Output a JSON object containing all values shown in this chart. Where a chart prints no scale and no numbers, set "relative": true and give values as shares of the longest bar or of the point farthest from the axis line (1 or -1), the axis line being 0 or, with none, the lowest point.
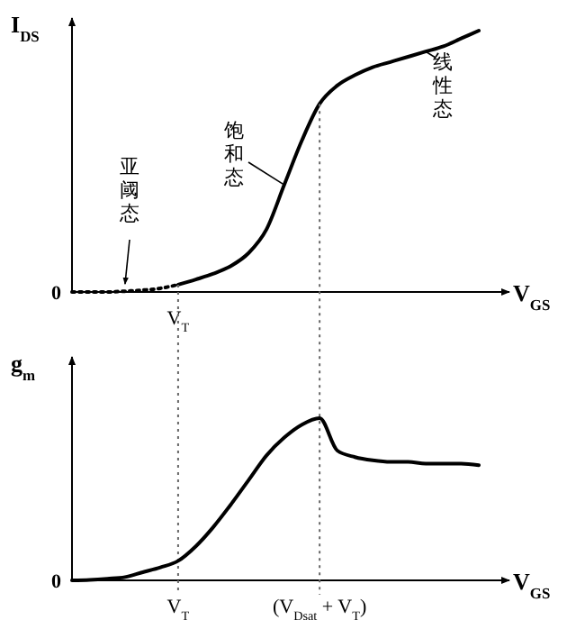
{
  "chart_data": [
    {
      "type": "line",
      "relative": true,
      "ylabel": "I$_{DS}$",
      "xlabel": "V$_{GS}$",
      "categories": [
        null,
        null,
        null,
        null,
        null,
        null,
        null,
        null,
        null,
        null,
        null,
        null,
        null,
        null,
        null,
        null,
        null,
        null,
        null,
        null,
        null,
        null,
        null,
        null
      ],
      "series": [
        {
          "color": "#000000",
          "line_style": "dotted",
          "values": [
            0,
            0,
            0,
            0.003,
            0.007,
            0.014,
            0.028,
            null,
            null,
            null,
            null,
            null,
            null,
            null,
            null,
            null,
            null,
            null,
            null,
            null,
            null,
            null,
            null,
            null
          ]
        },
        {
          "color": "#000000",
          "line_style": "solid",
          "values": [
            null,
            null,
            null,
            null,
            null,
            null,
            0.028,
            0.048,
            0.07,
            0.1,
            0.15,
            0.24,
            0.41,
            0.58,
            0.72,
            0.79,
            0.83,
            0.86,
            0.88,
            0.9,
            0.92,
            0.94,
            0.97,
            1
          ]
        }
      ],
      "annotations": [
        "0",
        "亚阈态",
        "饱和态",
        "线性态",
        "V$_{T}$"
      ]
    },
    {
      "type": "line",
      "relative": true,
      "ylabel": "g$_{m}$",
      "xlabel": "V$_{GS}$",
      "categories": [
        null,
        null,
        null,
        null,
        null,
        null,
        "V$_{T}$",
        null,
        null,
        null,
        null,
        null,
        null,
        null,
        "(V$_{Dsat}$ + V$_{T}$)",
        null,
        null,
        null,
        null,
        null,
        null,
        null,
        null,
        null
      ],
      "series": [
        {
          "color": "#000000",
          "line_style": "solid",
          "values": [
            0,
            0.003,
            0.01,
            0.02,
            0.05,
            0.08,
            0.12,
            0.21,
            0.33,
            0.47,
            0.62,
            0.77,
            0.88,
            0.96,
            1,
            0.8,
            0.76,
            0.74,
            0.73,
            0.73,
            0.72,
            0.72,
            0.72,
            0.71
          ]
        }
      ],
      "ref_lines": [
        {
          "axis": "x",
          "value": "V$_{T}$",
          "line_style": "dotted"
        },
        {
          "axis": "x",
          "value": "(V$_{Dsat}$ + V$_{T}$)",
          "line_style": "dotted"
        }
      ],
      "annotations": [
        "0"
      ]
    }
  ]
}
